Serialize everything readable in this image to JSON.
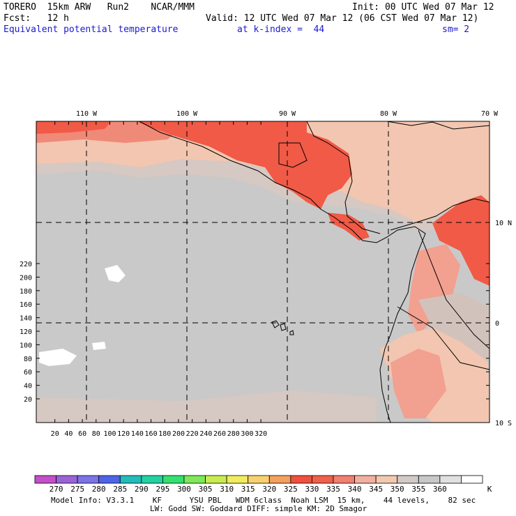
{
  "header": {
    "model": "TORERO  15km ARW   Run2    NCAR/MMM",
    "init": "Init: 00 UTC Wed 07 Mar 12",
    "fcst": "Fcst:   12 h",
    "valid": "Valid: 12 UTC Wed 07 Mar 12 (06 CST Wed 07 Mar 12)",
    "field": "Equivalent potential temperature",
    "level": "at k-index =  44",
    "smoothing": "sm= 2"
  },
  "map": {
    "lon_labels": [
      "110 W",
      "100 W",
      "90 W",
      "80 W",
      "70 W"
    ],
    "lat_labels": [
      "10 N",
      "0",
      "10 S"
    ],
    "x_ticks": [
      "20",
      "40",
      "60",
      "80",
      "100",
      "120",
      "140",
      "160",
      "180",
      "200",
      "220",
      "240",
      "260",
      "280",
      "300",
      "320"
    ],
    "y_ticks": [
      "20",
      "40",
      "60",
      "80",
      "100",
      "120",
      "140",
      "160",
      "180",
      "200",
      "220"
    ]
  },
  "colorbar": {
    "units": "K",
    "labels": [
      "270",
      "275",
      "280",
      "285",
      "290",
      "295",
      "300",
      "305",
      "310",
      "315",
      "320",
      "325",
      "330",
      "335",
      "340",
      "345",
      "350",
      "355",
      "360"
    ],
    "colors": [
      "#c34fc9",
      "#9b63d6",
      "#7b74e6",
      "#4f63e8",
      "#22bcbc",
      "#22d2a0",
      "#33e070",
      "#7de85a",
      "#c8ec50",
      "#f0ec60",
      "#f8d070",
      "#f4a060",
      "#f0503e",
      "#f0604a",
      "#f08070",
      "#f2b0a0",
      "#f2c8b0",
      "#d2cac6",
      "#c8c8c8",
      "#e0e0e0",
      "#ffffff"
    ]
  },
  "footer": {
    "line1": "Model Info: V3.3.1    KF      YSU PBL   WDM 6class  Noah LSM  15 km,    44 levels,    82 sec",
    "line2": "LW: Godd SW: Goddard DIFF: simple KM: 2D Smagor"
  }
}
